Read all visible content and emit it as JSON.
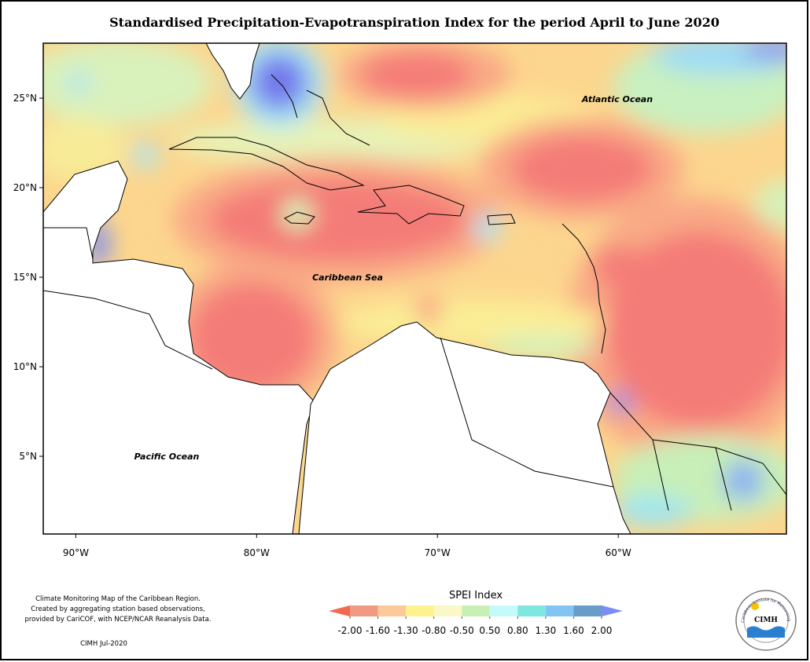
{
  "title": "Standardised Precipitation-Evapotranspiration Index for the period April to June 2020",
  "map": {
    "lon_ticks": [
      {
        "value": -90,
        "label": "90°W"
      },
      {
        "value": -80,
        "label": "80°W"
      },
      {
        "value": -70,
        "label": "70°W"
      },
      {
        "value": -60,
        "label": "60°W"
      }
    ],
    "lat_ticks": [
      {
        "value": 25,
        "label": "25°N"
      },
      {
        "value": 20,
        "label": "20°N"
      },
      {
        "value": 15,
        "label": "15°N"
      },
      {
        "value": 10,
        "label": "10°N"
      },
      {
        "value": 5,
        "label": "5°N"
      }
    ],
    "xlim": [
      -91.8,
      -50.7
    ],
    "ylim": [
      0.66,
      28.07
    ],
    "places": [
      "Atlantic Ocean",
      "Caribbean Sea",
      "Pacific Ocean"
    ]
  },
  "legend": {
    "title": "SPEI Index",
    "ticks": [
      {
        "value": -2,
        "label": "-2.00"
      },
      {
        "value": -1.6,
        "label": "-1.60"
      },
      {
        "value": -1.3,
        "label": "-1.30"
      },
      {
        "value": -0.8,
        "label": "-0.80"
      },
      {
        "value": -0.5,
        "label": "-0.50"
      },
      {
        "value": 0.5,
        "label": "0.50"
      },
      {
        "value": 0.8,
        "label": "0.80"
      },
      {
        "value": 1.3,
        "label": "1.30"
      },
      {
        "value": 1.6,
        "label": "1.60"
      },
      {
        "value": 2,
        "label": "2.00"
      }
    ],
    "colors": [
      "#f26a50",
      "#f09a84",
      "#fcc99a",
      "#fdf28e",
      "#fbf8c8",
      "#c8f0b4",
      "#c4fafa",
      "#7ee8e0",
      "#84c4f4",
      "#6a9cc8",
      "#7c8cf0"
    ]
  },
  "notes": [
    "Climate Monitoring Map of the Caribbean Region.",
    "Created by aggregating station based observations,",
    "provided by CariCOF, with NCEP/NCAR Reanalysis Data."
  ],
  "credit": "CIMH Jul-2020",
  "logo": {
    "name": "CIMH",
    "arc": "Caribbean Institute for Meteorology and Hydrology"
  }
}
